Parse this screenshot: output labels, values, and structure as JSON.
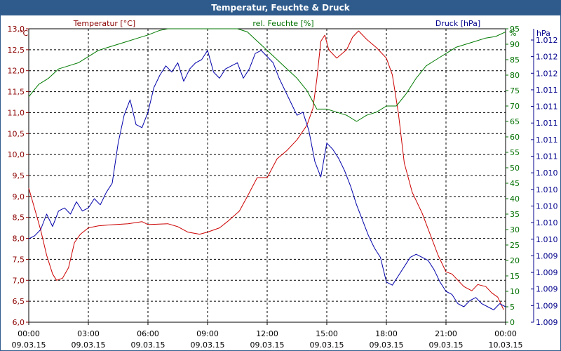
{
  "window": {
    "title": "Temperatur, Feuchte & Druck"
  },
  "chart_data": {
    "type": "line",
    "title": "Temperatur, Feuchte & Druck",
    "grid": true,
    "x_ticks": [
      {
        "time": "00:00",
        "date": "09.03.15"
      },
      {
        "time": "03:00",
        "date": "09.03.15"
      },
      {
        "time": "06:00",
        "date": "09.03.15"
      },
      {
        "time": "09:00",
        "date": "09.03.15"
      },
      {
        "time": "12:00",
        "date": "09.03.15"
      },
      {
        "time": "15:00",
        "date": "09.03.15"
      },
      {
        "time": "18:00",
        "date": "09.03.15"
      },
      {
        "time": "21:00",
        "date": "09.03.15"
      },
      {
        "time": "00:00",
        "date": "10.03.15"
      }
    ],
    "x_range_hours": [
      0,
      24
    ],
    "axes": {
      "left": {
        "label": "Temperatur [°C]",
        "unit": "°C",
        "ylim": [
          6.0,
          13.0
        ],
        "ticks": [
          "6,0",
          "6,5",
          "7,0",
          "7,5",
          "8,0",
          "8,5",
          "9,0",
          "9,5",
          "10,0",
          "10,5",
          "11,0",
          "11,5",
          "12,0",
          "12,5",
          "13,0"
        ]
      },
      "middle": {
        "label": "rel. Feuchte [%]",
        "unit": "%",
        "ylim": [
          0,
          95
        ],
        "ticks": [
          "0",
          "5",
          "10",
          "15",
          "20",
          "25",
          "30",
          "35",
          "40",
          "45",
          "50",
          "55",
          "60",
          "65",
          "70",
          "75",
          "80",
          "85",
          "90",
          "95"
        ]
      },
      "right": {
        "label": "Druck [hPa]",
        "unit": "hPa",
        "ticks": [
          "1.009",
          "1.009",
          "1.009",
          "1.009",
          "1.009",
          "1.010",
          "1.010",
          "1.010",
          "1.010",
          "1.010",
          "1.011",
          "1.011",
          "1.011",
          "1.011",
          "1.011",
          "1.012",
          "1.012",
          "1.012"
        ]
      }
    },
    "series": [
      {
        "name": "Temperatur [°C]",
        "axis": "left",
        "color": "#cc0000",
        "points": [
          [
            0,
            9.2
          ],
          [
            0.3,
            8.7
          ],
          [
            0.6,
            8.2
          ],
          [
            0.9,
            7.6
          ],
          [
            1.2,
            7.15
          ],
          [
            1.4,
            7.0
          ],
          [
            1.7,
            7.05
          ],
          [
            2.0,
            7.3
          ],
          [
            2.3,
            7.9
          ],
          [
            2.6,
            8.1
          ],
          [
            3.0,
            8.25
          ],
          [
            3.5,
            8.3
          ],
          [
            4.0,
            8.32
          ],
          [
            5.0,
            8.35
          ],
          [
            5.7,
            8.4
          ],
          [
            6.0,
            8.33
          ],
          [
            7.0,
            8.35
          ],
          [
            7.5,
            8.28
          ],
          [
            8.0,
            8.15
          ],
          [
            8.6,
            8.1
          ],
          [
            9.0,
            8.15
          ],
          [
            9.6,
            8.25
          ],
          [
            10.0,
            8.4
          ],
          [
            10.6,
            8.65
          ],
          [
            11.0,
            9.0
          ],
          [
            11.5,
            9.45
          ],
          [
            12.0,
            9.45
          ],
          [
            12.5,
            9.9
          ],
          [
            13.0,
            10.1
          ],
          [
            13.5,
            10.35
          ],
          [
            14.0,
            10.7
          ],
          [
            14.3,
            11.1
          ],
          [
            14.5,
            11.8
          ],
          [
            14.7,
            12.7
          ],
          [
            14.9,
            12.85
          ],
          [
            15.1,
            12.5
          ],
          [
            15.5,
            12.3
          ],
          [
            16.0,
            12.5
          ],
          [
            16.3,
            12.8
          ],
          [
            16.6,
            12.95
          ],
          [
            17.0,
            12.75
          ],
          [
            17.5,
            12.55
          ],
          [
            18.0,
            12.3
          ],
          [
            18.3,
            11.9
          ],
          [
            18.6,
            11.0
          ],
          [
            18.9,
            9.8
          ],
          [
            19.3,
            9.1
          ],
          [
            19.8,
            8.6
          ],
          [
            20.2,
            8.1
          ],
          [
            20.6,
            7.6
          ],
          [
            21.0,
            7.2
          ],
          [
            21.3,
            7.15
          ],
          [
            21.6,
            7.0
          ],
          [
            21.9,
            6.85
          ],
          [
            22.3,
            6.75
          ],
          [
            22.6,
            6.9
          ],
          [
            23.0,
            6.85
          ],
          [
            23.3,
            6.7
          ],
          [
            23.6,
            6.6
          ],
          [
            23.9,
            6.3
          ]
        ]
      },
      {
        "name": "rel. Feuchte [%]",
        "axis": "middle",
        "color": "#007a00",
        "points": [
          [
            0,
            73
          ],
          [
            0.5,
            77
          ],
          [
            1.0,
            79
          ],
          [
            1.5,
            82
          ],
          [
            2.0,
            83
          ],
          [
            2.5,
            84
          ],
          [
            3.0,
            86
          ],
          [
            3.5,
            88
          ],
          [
            4.0,
            89
          ],
          [
            5.0,
            91
          ],
          [
            5.5,
            92
          ],
          [
            6.0,
            93
          ],
          [
            6.6,
            94.5
          ],
          [
            7.0,
            95
          ],
          [
            8.0,
            95
          ],
          [
            9.0,
            95
          ],
          [
            10.0,
            95
          ],
          [
            10.5,
            95
          ],
          [
            11.0,
            94
          ],
          [
            11.5,
            91
          ],
          [
            12.0,
            88
          ],
          [
            12.5,
            85
          ],
          [
            13.0,
            82
          ],
          [
            13.5,
            79
          ],
          [
            14.0,
            75
          ],
          [
            14.5,
            69
          ],
          [
            15.0,
            69
          ],
          [
            15.5,
            68
          ],
          [
            16.0,
            67
          ],
          [
            16.5,
            65
          ],
          [
            17.0,
            67
          ],
          [
            17.5,
            68
          ],
          [
            18.0,
            70
          ],
          [
            18.5,
            70
          ],
          [
            19.0,
            74
          ],
          [
            19.5,
            79
          ],
          [
            20.0,
            83
          ],
          [
            20.5,
            85
          ],
          [
            21.0,
            87
          ],
          [
            21.5,
            89
          ],
          [
            22.0,
            90
          ],
          [
            22.5,
            91
          ],
          [
            23.0,
            92
          ],
          [
            23.5,
            92.5
          ],
          [
            24.0,
            94
          ]
        ]
      },
      {
        "name": "Druck [hPa]",
        "axis": "right",
        "color": "#0000aa",
        "points": [
          [
            0,
            27
          ],
          [
            0.3,
            28
          ],
          [
            0.6,
            30
          ],
          [
            0.9,
            35
          ],
          [
            1.2,
            31
          ],
          [
            1.5,
            36
          ],
          [
            1.8,
            37
          ],
          [
            2.1,
            35
          ],
          [
            2.4,
            39
          ],
          [
            2.7,
            36
          ],
          [
            3.0,
            37
          ],
          [
            3.3,
            40
          ],
          [
            3.6,
            38
          ],
          [
            3.9,
            42
          ],
          [
            4.2,
            45
          ],
          [
            4.5,
            58
          ],
          [
            4.8,
            67
          ],
          [
            5.1,
            72
          ],
          [
            5.4,
            64
          ],
          [
            5.7,
            63
          ],
          [
            6.0,
            68
          ],
          [
            6.3,
            76
          ],
          [
            6.6,
            80
          ],
          [
            6.9,
            83
          ],
          [
            7.2,
            81
          ],
          [
            7.5,
            84
          ],
          [
            7.8,
            78
          ],
          [
            8.1,
            82
          ],
          [
            8.4,
            84
          ],
          [
            8.7,
            85
          ],
          [
            9.0,
            88
          ],
          [
            9.3,
            81
          ],
          [
            9.6,
            79
          ],
          [
            9.9,
            82
          ],
          [
            10.2,
            83
          ],
          [
            10.5,
            84
          ],
          [
            10.8,
            79
          ],
          [
            11.1,
            82
          ],
          [
            11.4,
            87
          ],
          [
            11.7,
            88
          ],
          [
            12.0,
            86
          ],
          [
            12.3,
            84
          ],
          [
            12.6,
            79
          ],
          [
            12.9,
            75
          ],
          [
            13.2,
            71
          ],
          [
            13.5,
            67
          ],
          [
            13.8,
            68
          ],
          [
            14.1,
            62
          ],
          [
            14.4,
            52
          ],
          [
            14.7,
            47
          ],
          [
            15.0,
            58
          ],
          [
            15.3,
            56
          ],
          [
            15.6,
            53
          ],
          [
            15.9,
            49
          ],
          [
            16.2,
            44
          ],
          [
            16.5,
            38
          ],
          [
            16.8,
            33
          ],
          [
            17.1,
            28
          ],
          [
            17.4,
            24
          ],
          [
            17.7,
            21
          ],
          [
            18.0,
            13
          ],
          [
            18.3,
            12
          ],
          [
            18.6,
            15
          ],
          [
            18.9,
            18
          ],
          [
            19.2,
            21
          ],
          [
            19.5,
            22
          ],
          [
            19.8,
            21
          ],
          [
            20.1,
            20
          ],
          [
            20.4,
            17
          ],
          [
            20.7,
            13
          ],
          [
            21.0,
            10
          ],
          [
            21.3,
            9
          ],
          [
            21.6,
            6
          ],
          [
            21.9,
            5
          ],
          [
            22.2,
            7
          ],
          [
            22.5,
            8
          ],
          [
            22.8,
            6
          ],
          [
            23.1,
            5
          ],
          [
            23.4,
            4
          ],
          [
            23.7,
            6
          ],
          [
            24.0,
            5
          ]
        ]
      }
    ]
  }
}
